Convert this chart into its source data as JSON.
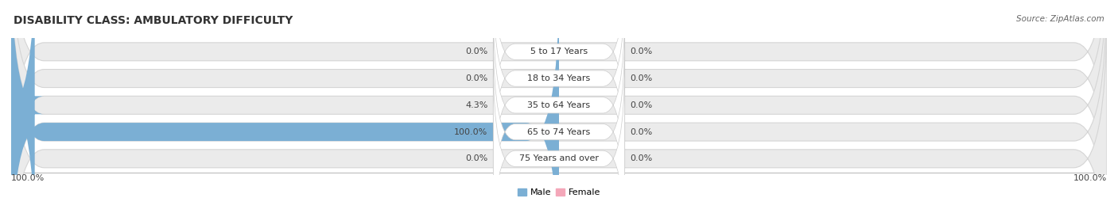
{
  "title": "DISABILITY CLASS: AMBULATORY DIFFICULTY",
  "source": "Source: ZipAtlas.com",
  "categories": [
    "5 to 17 Years",
    "18 to 34 Years",
    "35 to 64 Years",
    "65 to 74 Years",
    "75 Years and over"
  ],
  "male_values": [
    0.0,
    0.0,
    4.3,
    100.0,
    0.0
  ],
  "female_values": [
    0.0,
    0.0,
    0.0,
    0.0,
    0.0
  ],
  "male_color": "#7bafd4",
  "female_color": "#f4a7b9",
  "bar_bg_color": "#ebebeb",
  "bar_edge_color": "#d5d5d5",
  "title_fontsize": 10,
  "label_fontsize": 8,
  "cat_fontsize": 8,
  "source_fontsize": 7.5,
  "max_val": 100.0,
  "left_label": "100.0%",
  "right_label": "100.0%"
}
